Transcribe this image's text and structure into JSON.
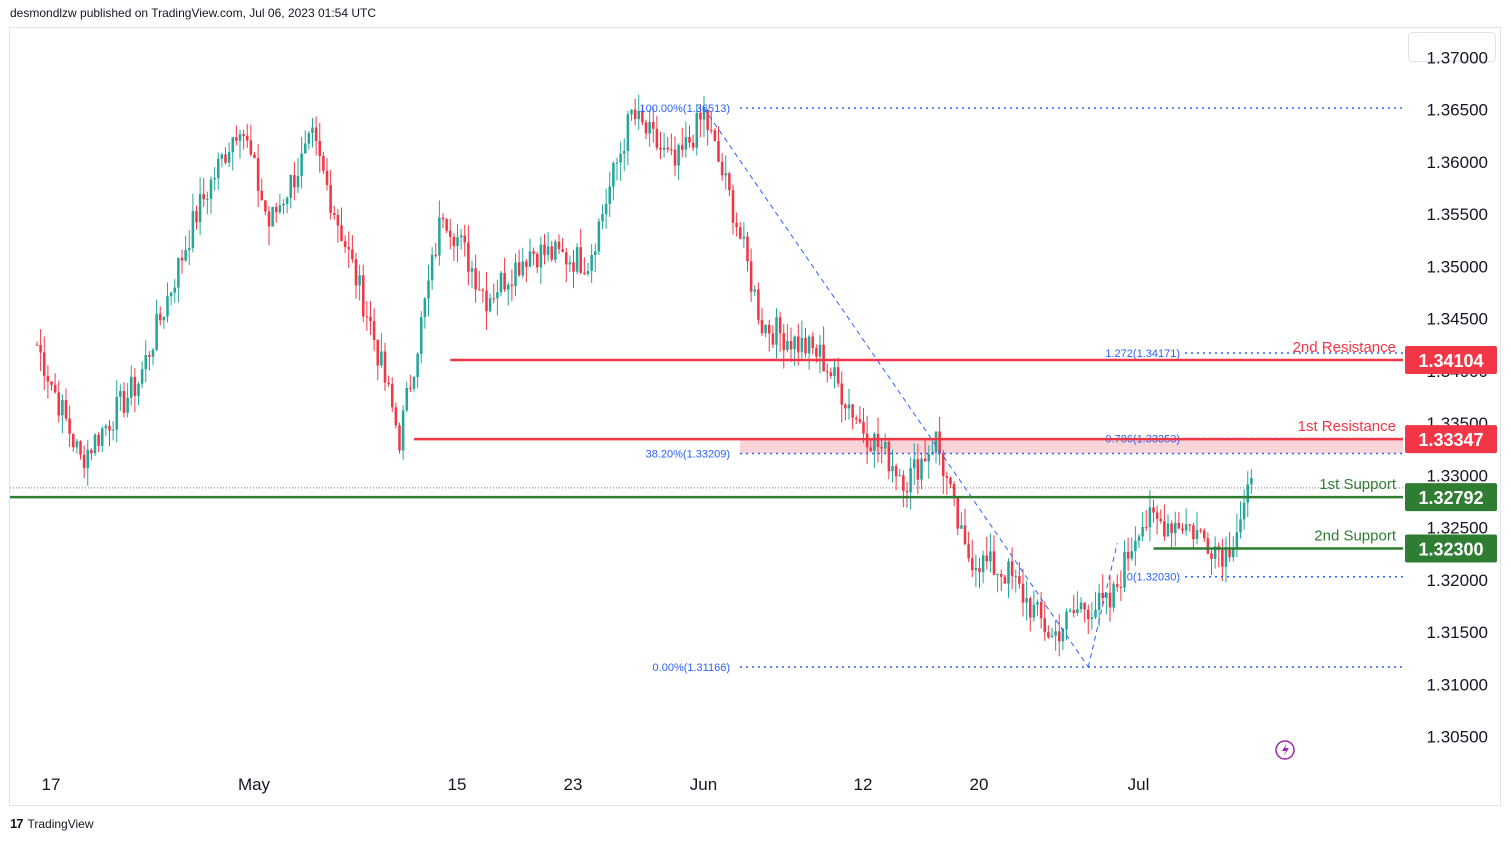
{
  "header": {
    "published_text": "desmondlzw published on TradingView.com, Jul 06, 2023 01:54 UTC"
  },
  "footer": {
    "brand": "TradingView"
  },
  "colors": {
    "bull": "#26a69a",
    "bear": "#f23645",
    "resistance": "#f23645",
    "support": "#2e7d32",
    "fib": "#2962ff",
    "zone": "#f7c6cb"
  },
  "chart_data": {
    "type": "candlestick",
    "y_ticks": [
      "1.37000",
      "1.36500",
      "1.36000",
      "1.35500",
      "1.35000",
      "1.34500",
      "1.34000",
      "1.33500",
      "1.33000",
      "1.32500",
      "1.32000",
      "1.31500",
      "1.31000",
      "1.30500"
    ],
    "y_tick_values": [
      1.37,
      1.365,
      1.36,
      1.355,
      1.35,
      1.345,
      1.34,
      1.335,
      1.33,
      1.325,
      1.32,
      1.315,
      1.31,
      1.305
    ],
    "ylim": [
      1.302,
      1.3728
    ],
    "x_ticks": [
      {
        "label": "17",
        "day": 0
      },
      {
        "label": "May",
        "day": 14
      },
      {
        "label": "15",
        "day": 28
      },
      {
        "label": "23",
        "day": 36
      },
      {
        "label": "Jun",
        "day": 45
      },
      {
        "label": "12",
        "day": 56
      },
      {
        "label": "20",
        "day": 64
      },
      {
        "label": "Jul",
        "day": 75
      }
    ],
    "levels": [
      {
        "name": "2nd Resistance",
        "value": 1.34104,
        "label": "1.34104",
        "kind": "resistance"
      },
      {
        "name": "1st Resistance",
        "value": 1.33347,
        "label": "1.33347",
        "kind": "resistance"
      },
      {
        "name": "1st Support",
        "value": 1.32792,
        "label": "1.32792",
        "kind": "support"
      },
      {
        "name": "2nd Support",
        "value": 1.323,
        "label": "1.32300",
        "kind": "support"
      }
    ],
    "fib_labels": [
      {
        "text": "100.00%(1.36513)",
        "value": 1.36513
      },
      {
        "text": "38.20%(1.33209)",
        "value": 1.33209
      },
      {
        "text": "0.00%(1.31166)",
        "value": 1.31166
      },
      {
        "text": "1.272(1.34171)",
        "value": 1.34171
      },
      {
        "text": "0.786(1.33353)",
        "value": 1.33353
      },
      {
        "text": "0(1.32030)",
        "value": 1.3203
      }
    ],
    "key_closes": [
      {
        "day": 0,
        "close": 1.3425
      },
      {
        "day": 3,
        "close": 1.3315
      },
      {
        "day": 7,
        "close": 1.339
      },
      {
        "day": 11,
        "close": 1.355
      },
      {
        "day": 14,
        "close": 1.364
      },
      {
        "day": 16,
        "close": 1.354
      },
      {
        "day": 19,
        "close": 1.362
      },
      {
        "day": 23,
        "close": 1.3445
      },
      {
        "day": 25,
        "close": 1.3335
      },
      {
        "day": 28,
        "close": 1.3555
      },
      {
        "day": 31,
        "close": 1.347
      },
      {
        "day": 34,
        "close": 1.3515
      },
      {
        "day": 38,
        "close": 1.3505
      },
      {
        "day": 41,
        "close": 1.3645
      },
      {
        "day": 44,
        "close": 1.3595
      },
      {
        "day": 46,
        "close": 1.3645
      },
      {
        "day": 48,
        "close": 1.3555
      },
      {
        "day": 50,
        "close": 1.3445
      },
      {
        "day": 54,
        "close": 1.3415
      },
      {
        "day": 57,
        "close": 1.3345
      },
      {
        "day": 60,
        "close": 1.3295
      },
      {
        "day": 62,
        "close": 1.3335
      },
      {
        "day": 64,
        "close": 1.3225
      },
      {
        "day": 67,
        "close": 1.3205
      },
      {
        "day": 70,
        "close": 1.3145
      },
      {
        "day": 72,
        "close": 1.3175
      },
      {
        "day": 74,
        "close": 1.3175
      },
      {
        "day": 76,
        "close": 1.3255
      },
      {
        "day": 79,
        "close": 1.3255
      },
      {
        "day": 82,
        "close": 1.3225
      },
      {
        "day": 84,
        "close": 1.3295
      }
    ]
  }
}
